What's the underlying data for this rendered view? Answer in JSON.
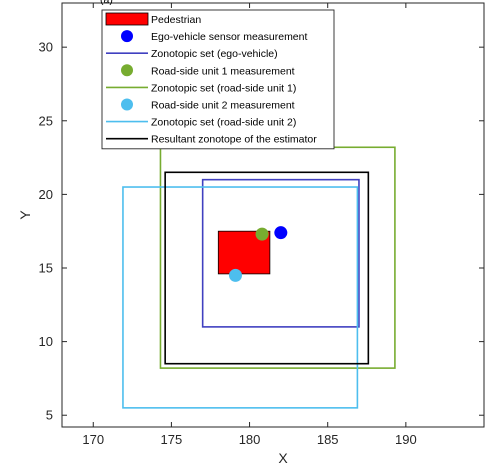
{
  "top_caption": "(a)",
  "chart_data": {
    "type": "scatter",
    "title": "",
    "xlabel": "X",
    "ylabel": "Y",
    "xlim": [
      168,
      195
    ],
    "ylim": [
      4.2,
      33
    ],
    "xticks": [
      170,
      175,
      180,
      185,
      190
    ],
    "yticks": [
      5,
      10,
      15,
      20,
      25,
      30
    ],
    "grid": false,
    "legend_position": "top-left",
    "pedestrian": {
      "label": "Pedestrian",
      "color": "#ff0000",
      "x_range": [
        178,
        181.3
      ],
      "y_range": [
        14.6,
        17.5
      ]
    },
    "measurements": [
      {
        "name": "Ego-vehicle sensor measurement",
        "color": "#0000ff",
        "x": 182,
        "y": 17.4
      },
      {
        "name": "Road-side unit 1 measurement",
        "color": "#77ac30",
        "x": 180.8,
        "y": 17.3
      },
      {
        "name": "Road-side unit 2 measurement",
        "color": "#4dbeee",
        "x": 179.1,
        "y": 14.5
      }
    ],
    "zonotopes": [
      {
        "name": "Zonotopic set (ego-vehicle)",
        "color": "#4040c0",
        "x_range": [
          177,
          187
        ],
        "y_range": [
          11,
          21
        ]
      },
      {
        "name": "Zonotopic set (road-side unit 1)",
        "color": "#77ac30",
        "x_range": [
          174.3,
          189.3
        ],
        "y_range": [
          8.2,
          23.2
        ]
      },
      {
        "name": "Zonotopic set (road-side unit 2)",
        "color": "#4dbeee",
        "x_range": [
          171.9,
          186.9
        ],
        "y_range": [
          5.5,
          20.5
        ]
      },
      {
        "name": "Resultant zonotope of the estimator",
        "color": "#000000",
        "x_range": [
          174.6,
          187.6
        ],
        "y_range": [
          8.5,
          21.5
        ]
      }
    ],
    "legend_order": [
      "Pedestrian",
      "Ego-vehicle sensor measurement",
      "Zonotopic set (ego-vehicle)",
      "Road-side unit 1 measurement",
      "Zonotopic set (road-side unit 1)",
      "Road-side unit 2 measurement",
      "Zonotopic set (road-side unit 2)",
      "Resultant zonotope of the estimator"
    ]
  }
}
